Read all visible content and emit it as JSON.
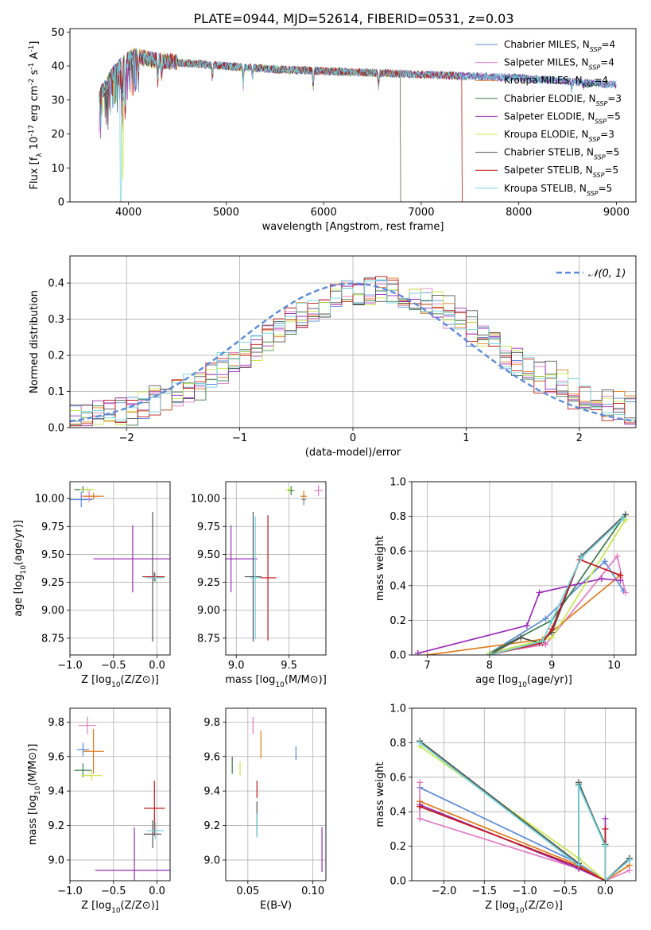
{
  "title": "PLATE=0944, MJD=52614, FIBERID=0531, z=0.03",
  "models": [
    {
      "name": "Chabrier MILES",
      "n": "4",
      "color": "#5b8bd9"
    },
    {
      "name": "Salpeter MILES",
      "n": "4",
      "color": "#e17ac6"
    },
    {
      "name": "Kroupa MILES",
      "n": "4",
      "color": "#e07b1e"
    },
    {
      "name": "Chabrier ELODIE",
      "n": "3",
      "color": "#3a7a4c"
    },
    {
      "name": "Salpeter ELODIE",
      "n": "5",
      "color": "#9a2cb8"
    },
    {
      "name": "Kroupa ELODIE",
      "n": "3",
      "color": "#c9e84a"
    },
    {
      "name": "Chabrier STELIB",
      "n": "5",
      "color": "#555555"
    },
    {
      "name": "Salpeter STELIB",
      "n": "5",
      "color": "#c01818"
    },
    {
      "name": "Kroupa STELIB",
      "n": "5",
      "color": "#70d2dc"
    }
  ],
  "chart_data": [
    {
      "id": "spectrum",
      "type": "line",
      "xlabel": "wavelength [Angstrom, rest frame]",
      "ylabel": "Flux [f_λ 10^-17 erg cm^-2 s^-1 A^-1]",
      "xlim": [
        3400,
        9200
      ],
      "ylim": [
        0,
        51
      ],
      "xticks": [
        4000,
        5000,
        6000,
        7000,
        8000,
        9000
      ],
      "yticks": [
        0,
        10,
        20,
        30,
        40,
        50
      ],
      "legend": "top-right",
      "range": [
        3700,
        9000
      ],
      "continuum": [
        [
          3700,
          31
        ],
        [
          3760,
          34
        ],
        [
          3850,
          38
        ],
        [
          3950,
          41
        ],
        [
          4050,
          43
        ],
        [
          4200,
          42
        ],
        [
          4500,
          41
        ],
        [
          5000,
          40
        ],
        [
          5500,
          39
        ],
        [
          6000,
          38.5
        ],
        [
          6500,
          38
        ],
        [
          7000,
          37.5
        ],
        [
          7500,
          37
        ],
        [
          8000,
          36.5
        ],
        [
          8500,
          35.5
        ],
        [
          9000,
          34.5
        ]
      ],
      "absorption_lines": [
        [
          3934,
          14
        ],
        [
          3969,
          11
        ],
        [
          4102,
          6
        ],
        [
          4300,
          5
        ],
        [
          4340,
          5
        ],
        [
          4861,
          4
        ],
        [
          5175,
          5
        ],
        [
          5270,
          3
        ],
        [
          5893,
          6
        ],
        [
          6563,
          4
        ],
        [
          8542,
          2
        ],
        [
          8662,
          2
        ]
      ],
      "drop_to_zero": [
        {
          "model": "Kroupa ELODIE",
          "from": 3945,
          "depth": 30
        },
        {
          "model": "Kroupa STELIB",
          "from": 3920,
          "depth": 40
        },
        {
          "model": "Chabrier STELIB",
          "from": 6790
        },
        {
          "model": "Kroupa ELODIE",
          "from": 6790
        },
        {
          "model": "Salpeter STELIB",
          "from": 7420
        },
        {
          "model": "Kroupa MILES",
          "from": 7420
        }
      ]
    },
    {
      "id": "residuals",
      "type": "histogram",
      "xlabel": "(data-model)/error",
      "ylabel": "Normed distribution",
      "xlim": [
        -2.5,
        2.5
      ],
      "ylim": [
        0,
        0.475
      ],
      "xticks": [
        -2,
        -1,
        0,
        1,
        2
      ],
      "yticks": [
        0.0,
        0.1,
        0.2,
        0.3,
        0.4
      ],
      "grid": true,
      "legend": "top-right",
      "bin_width": 0.1,
      "reference_curve": {
        "label": "𝒩(0, 1)",
        "mean": 0,
        "sigma": 1,
        "color": "#5b8bd9"
      }
    },
    {
      "id": "age_vs_Z",
      "type": "scatter",
      "xlabel": "Z [log10(Z/Z⊙)]",
      "ylabel": "age  [log10(age/yr)]",
      "xlim": [
        -1.0,
        0.15
      ],
      "ylim": [
        8.6,
        10.15
      ],
      "xticks": [
        -1.0,
        -0.5,
        0.0
      ],
      "yticks": [
        8.75,
        9.0,
        9.25,
        9.5,
        9.75,
        10.0
      ],
      "xticklabels": [
        "−1.0",
        "−0.5",
        "0.0"
      ],
      "grid": true,
      "points": [
        {
          "model": "Chabrier MILES",
          "x": -0.87,
          "y": 9.99,
          "xerr": 0.13,
          "yerr": 0.07
        },
        {
          "model": "Salpeter MILES",
          "x": -0.78,
          "y": 10.02,
          "xerr": 0.1,
          "yerr": 0.05
        },
        {
          "model": "Kroupa MILES",
          "x": -0.73,
          "y": 10.02,
          "xerr": 0.12,
          "yerr": 0.03
        },
        {
          "model": "Chabrier ELODIE",
          "x": -0.85,
          "y": 10.08,
          "xerr": 0.1,
          "yerr": 0.03
        },
        {
          "model": "Salpeter ELODIE",
          "x": -0.28,
          "y": 9.46,
          "xerr": 0.45,
          "yerr": 0.3
        },
        {
          "model": "Kroupa ELODIE",
          "x": -0.8,
          "y": 10.08,
          "xerr": 0.08,
          "yerr": 0.02
        },
        {
          "model": "Chabrier STELIB",
          "x": -0.05,
          "y": 9.3,
          "xerr": 0.12,
          "yerr": 0.58
        },
        {
          "model": "Salpeter STELIB",
          "x": -0.03,
          "y": 9.3,
          "xerr": 0.12,
          "yerr": 0.04
        },
        {
          "model": "Kroupa STELIB",
          "x": -0.02,
          "y": 9.29,
          "xerr": 0.1,
          "yerr": 0.04
        }
      ]
    },
    {
      "id": "age_vs_mass",
      "type": "scatter",
      "xlabel": "mass [log10(M/M⊙)]",
      "ylabel": "",
      "xlim": [
        8.9,
        9.85
      ],
      "ylim": [
        8.6,
        10.15
      ],
      "xticks": [
        9.0,
        9.5
      ],
      "yticks": [
        8.75,
        9.0,
        9.25,
        9.5,
        9.75,
        10.0
      ],
      "grid": true,
      "points": [
        {
          "model": "Chabrier MILES",
          "x": 9.64,
          "y": 9.99,
          "xerr": 0.02,
          "yerr": 0.05
        },
        {
          "model": "Salpeter MILES",
          "x": 9.78,
          "y": 10.07,
          "xerr": 0.04,
          "yerr": 0.05
        },
        {
          "model": "Kroupa MILES",
          "x": 9.64,
          "y": 10.02,
          "xerr": 0.03,
          "yerr": 0.05
        },
        {
          "model": "Chabrier ELODIE",
          "x": 9.52,
          "y": 10.07,
          "xerr": 0.03,
          "yerr": 0.04
        },
        {
          "model": "Salpeter ELODIE",
          "x": 8.95,
          "y": 9.46,
          "xerr": 0.25,
          "yerr": 0.3
        },
        {
          "model": "Kroupa ELODIE",
          "x": 9.5,
          "y": 10.08,
          "xerr": 0.03,
          "yerr": 0.03
        },
        {
          "model": "Chabrier STELIB",
          "x": 9.16,
          "y": 9.3,
          "xerr": 0.08,
          "yerr": 0.58
        },
        {
          "model": "Salpeter STELIB",
          "x": 9.3,
          "y": 9.29,
          "xerr": 0.08,
          "yerr": 0.56
        },
        {
          "model": "Kroupa STELIB",
          "x": 9.18,
          "y": 9.29,
          "xerr": 0.05,
          "yerr": 0.55
        }
      ]
    },
    {
      "id": "weight_vs_age",
      "type": "line",
      "xlabel": "age  [log10(age/yr)]",
      "ylabel": "mass weight",
      "xlim": [
        6.75,
        10.35
      ],
      "ylim": [
        0,
        1.0
      ],
      "xticks": [
        7,
        8,
        9,
        10
      ],
      "yticks": [
        0.0,
        0.2,
        0.4,
        0.6,
        0.8,
        1.0
      ],
      "grid": true,
      "series": [
        {
          "model": "Chabrier MILES",
          "x": [
            8.0,
            8.9,
            9.85,
            10.15
          ],
          "y": [
            0.01,
            0.21,
            0.54,
            0.37
          ]
        },
        {
          "model": "Salpeter MILES",
          "x": [
            8.0,
            8.9,
            10.05,
            10.18
          ],
          "y": [
            0.01,
            0.06,
            0.57,
            0.36
          ]
        },
        {
          "model": "Kroupa MILES",
          "x": [
            7.0,
            8.85,
            10.1
          ],
          "y": [
            0.0,
            0.09,
            0.46
          ]
        },
        {
          "model": "Chabrier ELODIE",
          "x": [
            8.0,
            9.0,
            10.18
          ],
          "y": [
            0.01,
            0.2,
            0.81
          ]
        },
        {
          "model": "Salpeter ELODIE",
          "x": [
            6.85,
            8.6,
            8.8,
            9.8,
            10.1
          ],
          "y": [
            0.01,
            0.17,
            0.36,
            0.44,
            0.43
          ]
        },
        {
          "model": "Kroupa ELODIE",
          "x": [
            8.0,
            9.0,
            10.18
          ],
          "y": [
            0.01,
            0.1,
            0.78
          ]
        },
        {
          "model": "Chabrier STELIB",
          "x": [
            8.0,
            8.5,
            8.8,
            9.0,
            9.47,
            10.18
          ],
          "y": [
            0.0,
            0.1,
            0.07,
            0.13,
            0.57,
            0.81
          ]
        },
        {
          "model": "Salpeter STELIB",
          "x": [
            8.0,
            8.85,
            9.0,
            9.45,
            10.1
          ],
          "y": [
            0.0,
            0.07,
            0.15,
            0.55,
            0.46
          ]
        },
        {
          "model": "Kroupa STELIB",
          "x": [
            8.0,
            8.85,
            9.0,
            9.47,
            10.15
          ],
          "y": [
            0.0,
            0.08,
            0.2,
            0.56,
            0.79
          ]
        }
      ]
    },
    {
      "id": "mass_vs_Z",
      "type": "scatter",
      "xlabel": "Z [log10(Z/Z⊙)]",
      "ylabel": "mass [log10(M/M⊙)]",
      "xlim": [
        -1.0,
        0.15
      ],
      "ylim": [
        8.88,
        9.88
      ],
      "xticks": [
        -1.0,
        -0.5,
        0.0
      ],
      "yticks": [
        9.0,
        9.2,
        9.4,
        9.6,
        9.8
      ],
      "xticklabels": [
        "−1.0",
        "−0.5",
        "0.0"
      ],
      "grid": true,
      "points": [
        {
          "model": "Chabrier MILES",
          "x": -0.85,
          "y": 9.64,
          "xerr": 0.07,
          "yerr": 0.04
        },
        {
          "model": "Salpeter MILES",
          "x": -0.8,
          "y": 9.78,
          "xerr": 0.1,
          "yerr": 0.05
        },
        {
          "model": "Kroupa MILES",
          "x": -0.73,
          "y": 9.63,
          "xerr": 0.12,
          "yerr": 0.13
        },
        {
          "model": "Chabrier ELODIE",
          "x": -0.85,
          "y": 9.52,
          "xerr": 0.1,
          "yerr": 0.04
        },
        {
          "model": "Salpeter ELODIE",
          "x": -0.26,
          "y": 8.94,
          "xerr": 0.45,
          "yerr": 0.25
        },
        {
          "model": "Kroupa ELODIE",
          "x": -0.75,
          "y": 9.49,
          "xerr": 0.12,
          "yerr": 0.03
        },
        {
          "model": "Chabrier STELIB",
          "x": -0.05,
          "y": 9.15,
          "xerr": 0.1,
          "yerr": 0.08
        },
        {
          "model": "Salpeter STELIB",
          "x": -0.03,
          "y": 9.3,
          "xerr": 0.12,
          "yerr": 0.16
        },
        {
          "model": "Kroupa STELIB",
          "x": -0.02,
          "y": 9.17,
          "xerr": 0.1,
          "yerr": 0.05
        }
      ]
    },
    {
      "id": "mass_vs_ebv",
      "type": "scatter",
      "xlabel": "E(B-V)",
      "ylabel": "",
      "xlim": [
        0.033,
        0.11
      ],
      "ylim": [
        8.88,
        9.88
      ],
      "xticks": [
        0.05,
        0.1
      ],
      "yticks": [
        9.0,
        9.2,
        9.4,
        9.6,
        9.8
      ],
      "grid": true,
      "points": [
        {
          "model": "Chabrier MILES",
          "x": 0.087,
          "y": 9.62,
          "xerr": 0,
          "yerr": 0.04
        },
        {
          "model": "Salpeter MILES",
          "x": 0.054,
          "y": 9.78,
          "xerr": 0,
          "yerr": 0.05
        },
        {
          "model": "Kroupa MILES",
          "x": 0.06,
          "y": 9.67,
          "xerr": 0,
          "yerr": 0.08
        },
        {
          "model": "Chabrier ELODIE",
          "x": 0.038,
          "y": 9.55,
          "xerr": 0,
          "yerr": 0.05
        },
        {
          "model": "Salpeter ELODIE",
          "x": 0.107,
          "y": 9.06,
          "xerr": 0,
          "yerr": 0.13
        },
        {
          "model": "Kroupa ELODIE",
          "x": 0.044,
          "y": 9.53,
          "xerr": 0,
          "yerr": 0.04
        },
        {
          "model": "Chabrier STELIB",
          "x": 0.057,
          "y": 9.24,
          "xerr": 0,
          "yerr": 0.1
        },
        {
          "model": "Salpeter STELIB",
          "x": 0.057,
          "y": 9.41,
          "xerr": 0,
          "yerr": 0.05
        },
        {
          "model": "Kroupa STELIB",
          "x": 0.057,
          "y": 9.2,
          "xerr": 0,
          "yerr": 0.07
        }
      ]
    },
    {
      "id": "weight_vs_Z",
      "type": "line",
      "xlabel": "Z [log10(Z/Z⊙)]",
      "ylabel": "mass weight",
      "xlim": [
        -2.4,
        0.38
      ],
      "ylim": [
        0,
        1.0
      ],
      "xticks": [
        -2.0,
        -1.5,
        -1.0,
        -0.5,
        0.0
      ],
      "yticks": [
        0.0,
        0.2,
        0.4,
        0.6,
        0.8,
        1.0
      ],
      "xticklabels": [
        "−2.0",
        "−1.5",
        "−1.0",
        "−0.5",
        "0.0"
      ],
      "grid": true,
      "series": [
        {
          "model": "Chabrier MILES",
          "x": [
            -2.3,
            -0.33,
            0.0,
            0.3
          ],
          "y": [
            0.54,
            0.1,
            0.0,
            0.13
          ]
        },
        {
          "model": "Salpeter MILES",
          "x": [
            -2.3,
            -2.3,
            -0.33,
            0.0,
            0.3
          ],
          "y": [
            0.57,
            0.36,
            0.07,
            0.0,
            0.06
          ]
        },
        {
          "model": "Kroupa MILES",
          "x": [
            -2.3,
            -0.33,
            0.0,
            0.3
          ],
          "y": [
            0.46,
            0.09,
            0.0,
            0.09
          ]
        },
        {
          "model": "Chabrier ELODIE",
          "x": [
            -2.3,
            -0.33,
            -0.33,
            0.0,
            0.0,
            0.3
          ],
          "y": [
            0.81,
            0.1,
            0.56,
            0.21,
            0.0,
            0.13
          ]
        },
        {
          "model": "Salpeter ELODIE",
          "x": [
            -2.3,
            -0.33,
            0.0,
            0.0
          ],
          "y": [
            0.44,
            0.07,
            0.0,
            0.36
          ]
        },
        {
          "model": "Kroupa ELODIE",
          "x": [
            -2.3,
            -0.33,
            0.0
          ],
          "y": [
            0.78,
            0.13,
            0.0
          ]
        },
        {
          "model": "Chabrier STELIB",
          "x": [
            -2.3,
            -0.33,
            -0.33,
            0.0,
            0.0,
            0.3
          ],
          "y": [
            0.81,
            0.1,
            0.57,
            0.2,
            0.0,
            0.13
          ]
        },
        {
          "model": "Salpeter STELIB",
          "x": [
            -2.3,
            -0.33,
            0.0,
            0.0
          ],
          "y": [
            0.43,
            0.08,
            0.0,
            0.3
          ]
        },
        {
          "model": "Kroupa STELIB",
          "x": [
            -2.3,
            -0.33,
            -0.33,
            0.0,
            0.0,
            0.3
          ],
          "y": [
            0.8,
            0.09,
            0.55,
            0.2,
            0.0,
            0.12
          ]
        }
      ]
    }
  ]
}
